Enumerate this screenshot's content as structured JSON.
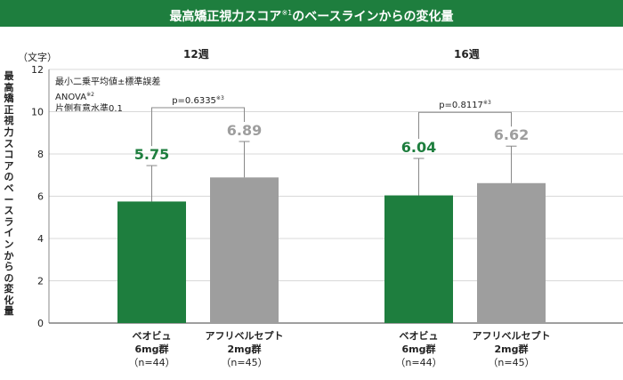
{
  "title": "最高矯正視力スコア",
  "title_sup": "※1",
  "title_suffix": "のベースラインからの変化量",
  "unit": "（文字）",
  "ylabel": "最高矯正視力スコアのベースラインからの変化量",
  "notes": {
    "line1": "最小二乗平均値±標準誤差",
    "line2": "ANOVA",
    "line2_sup": "※2",
    "line3": "片側有意水準0.1"
  },
  "colors": {
    "green": "#1e7e3e",
    "gray": "#9e9e9e",
    "grid": "#d8d8d8"
  },
  "chart_data": {
    "type": "bar",
    "ylim": [
      0,
      12
    ],
    "yticks": [
      "0",
      "2",
      "4",
      "6",
      "8",
      "10",
      "12"
    ],
    "grid": true,
    "groups": [
      {
        "label": "12週",
        "p_value": "p=0.6335",
        "p_sup": "※3",
        "bars": [
          {
            "name": "ベオビュ",
            "dose": "6mg群",
            "n": "（n=44）",
            "value": 5.75,
            "value_label": "5.75",
            "error": 1.7,
            "color": "#1e7e3e"
          },
          {
            "name": "アフリベルセプト",
            "dose": "2mg群",
            "n": "（n=45）",
            "value": 6.89,
            "value_label": "6.89",
            "error": 1.7,
            "color": "#9e9e9e"
          }
        ]
      },
      {
        "label": "16週",
        "p_value": "p=0.8117",
        "p_sup": "※3",
        "bars": [
          {
            "name": "ベオビュ",
            "dose": "6mg群",
            "n": "（n=44）",
            "value": 6.04,
            "value_label": "6.04",
            "error": 1.75,
            "color": "#1e7e3e"
          },
          {
            "name": "アフリベルセプト",
            "dose": "2mg群",
            "n": "（n=45）",
            "value": 6.62,
            "value_label": "6.62",
            "error": 1.75,
            "color": "#9e9e9e"
          }
        ]
      }
    ]
  }
}
